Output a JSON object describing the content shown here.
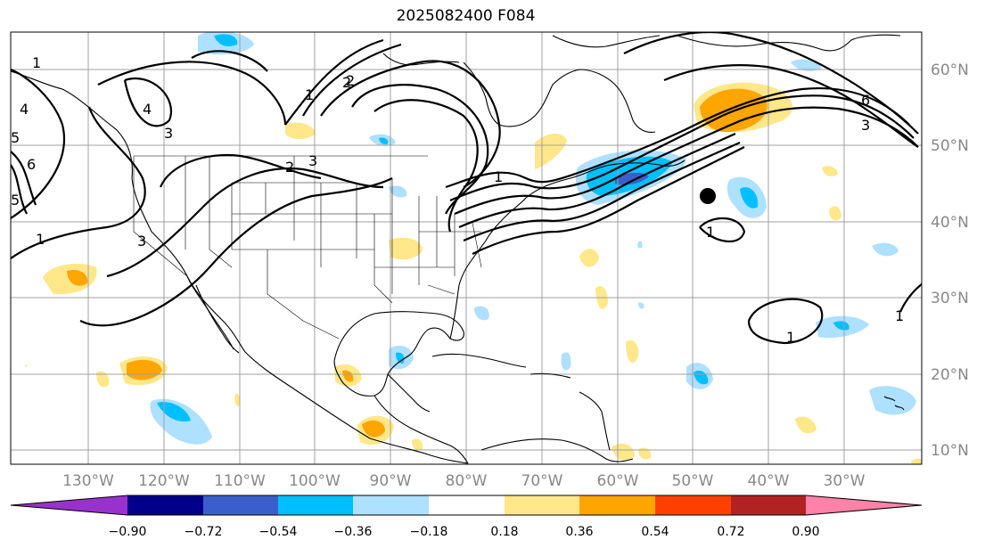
{
  "title": "2025082400 F084",
  "lat_labels": [
    "60°N",
    "50°N",
    "40°N",
    "30°N",
    "20°N",
    "10°N"
  ],
  "lon_labels": [
    "130°W",
    "120°W",
    "110°W",
    "100°W",
    "90°W",
    "80°W",
    "70°W",
    "60°W",
    "50°W",
    "40°W",
    "30°W"
  ],
  "colorbar": {
    "tick_labels": [
      "−0.90",
      "−0.72",
      "−0.54",
      "−0.36",
      "−0.18",
      "0.18",
      "0.36",
      "0.54",
      "0.72",
      "0.90"
    ],
    "colors": [
      "#9932cc",
      "#00008b",
      "#3a5fcd",
      "#00bfff",
      "#aee0ff",
      "#ffffff",
      "#ffe78a",
      "#ffa500",
      "#ff3f00",
      "#b22222",
      "#ff82ab"
    ]
  },
  "contour_labels": [
    "1",
    "2",
    "3",
    "4",
    "5",
    "6",
    "1",
    "3",
    "1",
    "2",
    "3",
    "1",
    "1",
    "1",
    "1",
    "2",
    "3",
    "4",
    "5",
    "6"
  ],
  "colors": {
    "contour": "#000000",
    "grid": "#a0a0a0",
    "coast": "#000000"
  }
}
